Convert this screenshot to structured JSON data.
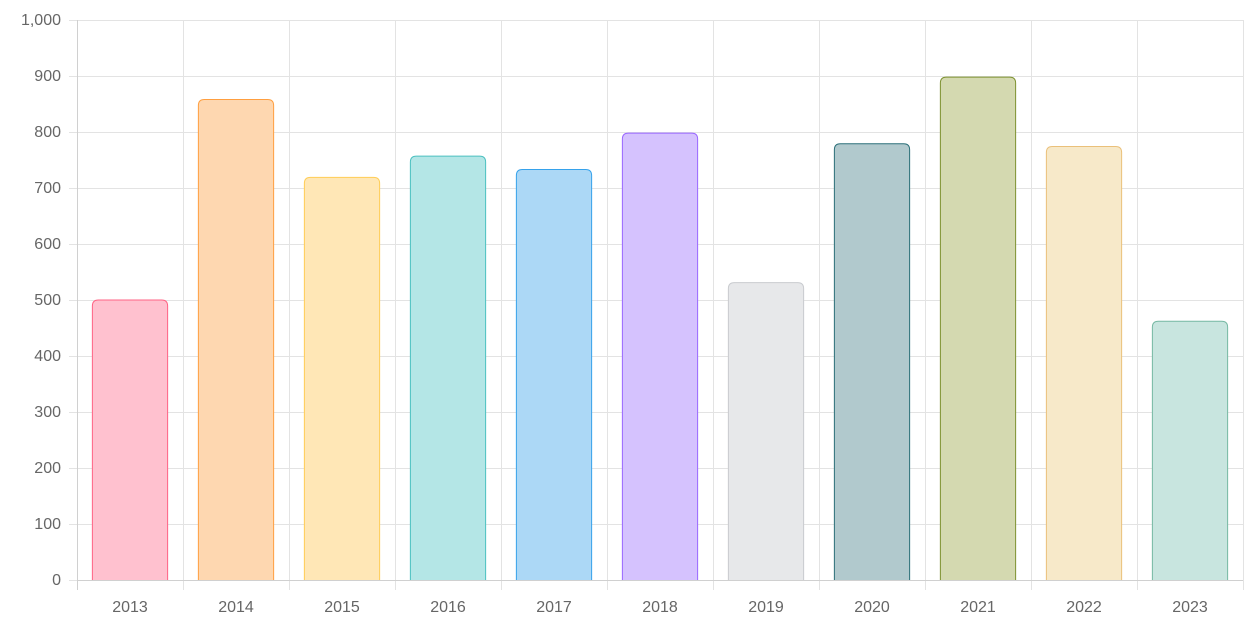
{
  "chart_data": {
    "type": "bar",
    "title": "",
    "xlabel": "",
    "ylabel": "",
    "categories": [
      "2013",
      "2014",
      "2015",
      "2016",
      "2017",
      "2018",
      "2019",
      "2020",
      "2021",
      "2022",
      "2023"
    ],
    "values": [
      500,
      858,
      719,
      757,
      733,
      798,
      531,
      779,
      898,
      774,
      462
    ],
    "ylim": [
      0,
      1000
    ],
    "yticks": [
      0,
      100,
      200,
      300,
      400,
      500,
      600,
      700,
      800,
      900,
      1000
    ],
    "ytick_labels": [
      "0",
      "100",
      "200",
      "300",
      "400",
      "500",
      "600",
      "700",
      "800",
      "900",
      "1,000"
    ],
    "grid": true,
    "legend": "none",
    "colors": [
      {
        "fill": "#ffc1cf",
        "stroke": "#ff6384"
      },
      {
        "fill": "#fed7b0",
        "stroke": "#ff9f40"
      },
      {
        "fill": "#ffe7b6",
        "stroke": "#ffcd56"
      },
      {
        "fill": "#b4e6e6",
        "stroke": "#4bc0c0"
      },
      {
        "fill": "#acd8f6",
        "stroke": "#36a2eb"
      },
      {
        "fill": "#d5c2fe",
        "stroke": "#9966ff"
      },
      {
        "fill": "#e7e8ea",
        "stroke": "#c9cbcf"
      },
      {
        "fill": "#b1c9cd",
        "stroke": "#2a6f78"
      },
      {
        "fill": "#d4d9b0",
        "stroke": "#7d9130"
      },
      {
        "fill": "#f7e9c9",
        "stroke": "#eac07a"
      },
      {
        "fill": "#c8e5df",
        "stroke": "#76b8a3"
      }
    ]
  }
}
